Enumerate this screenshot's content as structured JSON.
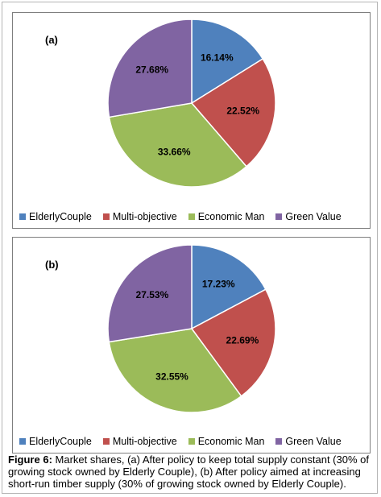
{
  "chart_data": [
    {
      "type": "pie",
      "panel_label": "(a)",
      "categories": [
        "ElderlyCouple",
        "Multi-objective",
        "Economic Man",
        "Green Value"
      ],
      "values": [
        16.14,
        22.52,
        33.66,
        27.68
      ],
      "value_labels": [
        "16.14%",
        "22.52%",
        "33.66%",
        "27.68%"
      ],
      "colors": [
        "#4f81bd",
        "#c0504d",
        "#9bbb59",
        "#8064a2"
      ],
      "legend_position": "bottom"
    },
    {
      "type": "pie",
      "panel_label": "(b)",
      "categories": [
        "ElderlyCouple",
        "Multi-objective",
        "Economic Man",
        "Green Value"
      ],
      "values": [
        17.23,
        22.69,
        32.55,
        27.53
      ],
      "value_labels": [
        "17.23%",
        "22.69%",
        "32.55%",
        "27.53%"
      ],
      "colors": [
        "#4f81bd",
        "#c0504d",
        "#9bbb59",
        "#8064a2"
      ],
      "legend_position": "bottom"
    }
  ],
  "caption": {
    "label": "Figure 6:",
    "text": " Market shares, (a) After policy to keep total supply constant (30% of growing stock owned by Elderly Couple), (b) After policy aimed at increasing short-run timber supply (30% of growing stock owned by Elderly Couple)."
  }
}
